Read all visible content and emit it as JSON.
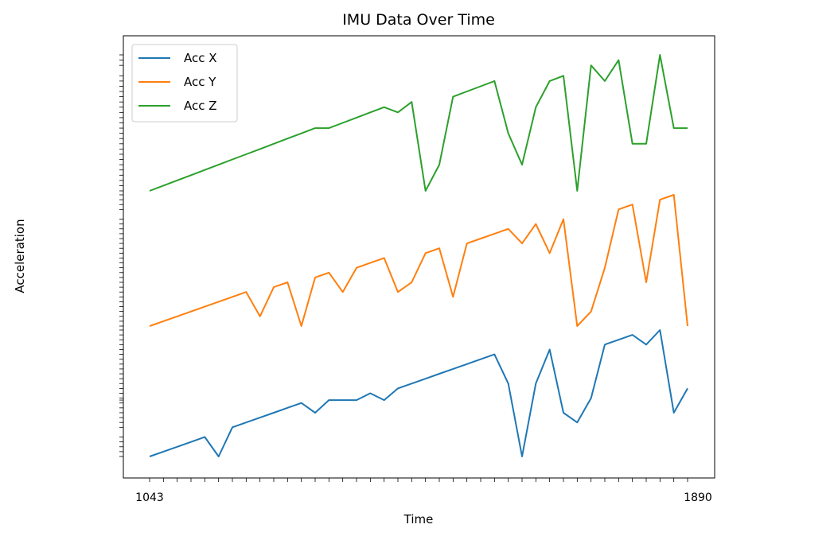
{
  "chart_data": {
    "type": "line",
    "title": "IMU Data Over Time",
    "xlabel": "Time",
    "ylabel": "Acceleration",
    "legend_position": "top-left",
    "grid": false,
    "x_first_label": "1043",
    "x_last_label": "1890",
    "x": [
      1,
      2,
      3,
      4,
      5,
      6,
      7,
      8,
      9,
      10,
      11,
      12,
      13,
      14,
      15,
      16,
      17,
      18,
      19,
      20,
      21,
      22,
      23,
      24,
      25,
      26,
      27,
      28,
      29,
      30,
      31,
      32,
      33,
      34,
      35,
      36,
      37,
      38,
      39,
      40
    ],
    "series": [
      {
        "name": "Acc X",
        "color": "#1f77b4",
        "values": [
          0.0,
          0.5,
          1.0,
          1.5,
          2.0,
          0.0,
          3.0,
          3.5,
          4.0,
          4.5,
          5.0,
          5.5,
          4.5,
          5.8,
          5.8,
          5.8,
          6.5,
          5.8,
          7.0,
          7.5,
          8.0,
          8.5,
          9.0,
          9.5,
          10.0,
          10.5,
          7.5,
          0.0,
          7.5,
          11.0,
          4.5,
          3.5,
          6.0,
          11.5,
          12.0,
          12.5,
          11.5,
          13.0,
          4.5,
          7.0
        ]
      },
      {
        "name": "Acc Y",
        "color": "#ff7f0e",
        "values": [
          0.0,
          0.5,
          1.0,
          1.5,
          2.0,
          2.5,
          3.0,
          3.5,
          1.0,
          4.0,
          4.5,
          0.0,
          5.0,
          5.5,
          3.5,
          6.0,
          6.5,
          7.0,
          3.5,
          4.5,
          7.5,
          8.0,
          3.0,
          8.5,
          9.0,
          9.5,
          10.0,
          8.5,
          10.5,
          7.5,
          11.0,
          0.0,
          1.5,
          6.0,
          12.0,
          12.5,
          4.5,
          13.0,
          13.5,
          0.0
        ]
      },
      {
        "name": "Acc Z",
        "color": "#2ca02c",
        "values": [
          0.0,
          0.5,
          1.0,
          1.5,
          2.0,
          2.5,
          3.0,
          3.5,
          4.0,
          4.5,
          5.0,
          5.5,
          6.0,
          6.0,
          6.5,
          7.0,
          7.5,
          8.0,
          7.5,
          8.5,
          0.0,
          2.5,
          9.0,
          9.5,
          10.0,
          10.5,
          5.5,
          2.5,
          8.0,
          10.5,
          11.0,
          0.0,
          12.0,
          10.5,
          12.5,
          4.5,
          4.5,
          13.0,
          6.0,
          6.0
        ]
      }
    ]
  }
}
